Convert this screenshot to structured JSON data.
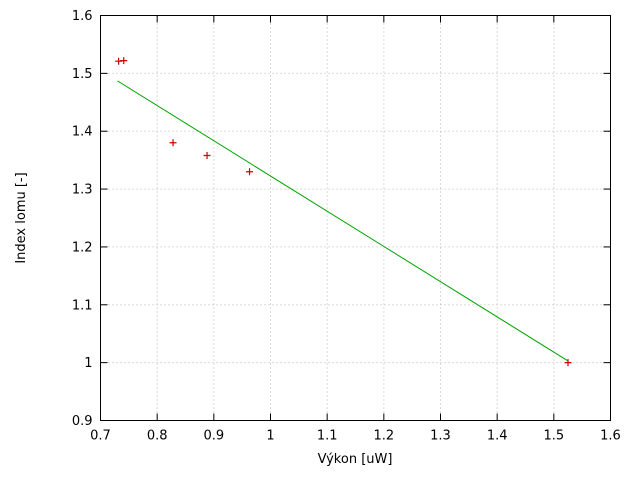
{
  "figure": {
    "background": "#ffffff"
  },
  "chart_data": {
    "type": "scatter",
    "title": "",
    "xlabel": "Výkon [uW]",
    "ylabel": "Index lomu [-]",
    "xlim": [
      0.7,
      1.6
    ],
    "ylim": [
      0.9,
      1.6
    ],
    "xticks": [
      0.7,
      0.8,
      0.9,
      1,
      1.1,
      1.2,
      1.3,
      1.4,
      1.5,
      1.6
    ],
    "xtick_labels": [
      "0.7",
      "0.8",
      "0.9",
      "1",
      "1.1",
      "1.2",
      "1.3",
      "1.4",
      "1.5",
      "1.6"
    ],
    "yticks": [
      0.9,
      1,
      1.1,
      1.2,
      1.3,
      1.4,
      1.5,
      1.6
    ],
    "ytick_labels": [
      "0.9",
      "1",
      "1.1",
      "1.2",
      "1.3",
      "1.4",
      "1.5",
      "1.6"
    ],
    "grid": true,
    "grid_color": "#b8b8b8",
    "axis_color": "#000000",
    "legend": "none",
    "series": [
      {
        "name": "measured-points",
        "type": "scatter",
        "marker": "plus",
        "color": "#cc0000",
        "points": [
          [
            0.732,
            1.521
          ],
          [
            0.741,
            1.522
          ],
          [
            0.828,
            1.38
          ],
          [
            0.888,
            1.358
          ],
          [
            0.963,
            1.33
          ],
          [
            1.525,
            1.0
          ]
        ]
      },
      {
        "name": "linear-fit",
        "type": "line",
        "color": "#00a400",
        "points": [
          [
            0.73,
            1.487
          ],
          [
            1.525,
            1.003
          ]
        ]
      }
    ]
  }
}
